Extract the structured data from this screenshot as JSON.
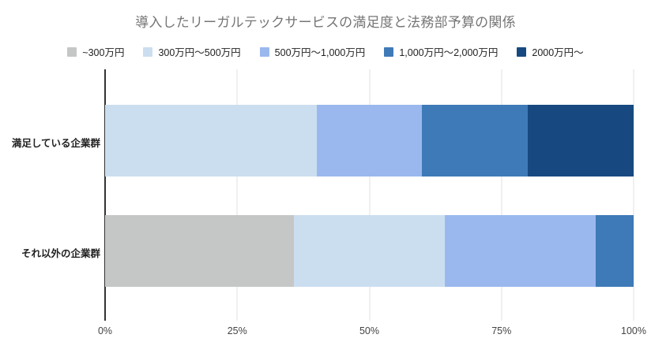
{
  "title": "導入したリーガルテックサービスの満足度と法務部予算の関係",
  "chart_data": {
    "type": "bar",
    "orientation": "horizontal",
    "stacked": true,
    "unit": "percent",
    "title": "導入したリーガルテックサービスの満足度と法務部予算の関係",
    "categories": [
      "満足している企業群",
      "それ以外の企業群"
    ],
    "series": [
      {
        "name": "~300万円",
        "color": "#c5c6c6",
        "values": [
          0,
          35.7
        ]
      },
      {
        "name": "300万円〜500万円",
        "color": "#cbdef0",
        "values": [
          40,
          28.6
        ]
      },
      {
        "name": "500万円〜1,000万円",
        "color": "#9ab8ee",
        "values": [
          20,
          28.6
        ]
      },
      {
        "name": "1,000万円〜2,000万円",
        "color": "#3e7ab7",
        "values": [
          20,
          7.1
        ]
      },
      {
        "name": "2000万円〜",
        "color": "#174980",
        "values": [
          20,
          0
        ]
      }
    ],
    "x_ticks": [
      "0%",
      "25%",
      "50%",
      "75%",
      "100%"
    ],
    "xlim": [
      0,
      100
    ],
    "grid": true,
    "legend_position": "top"
  },
  "colors": {
    "background": "#ffffff",
    "title_text": "#757575",
    "axis_baseline": "#333333",
    "gridline": "#e0e0e0",
    "tick_label": "#444444",
    "category_label": "#222222"
  }
}
